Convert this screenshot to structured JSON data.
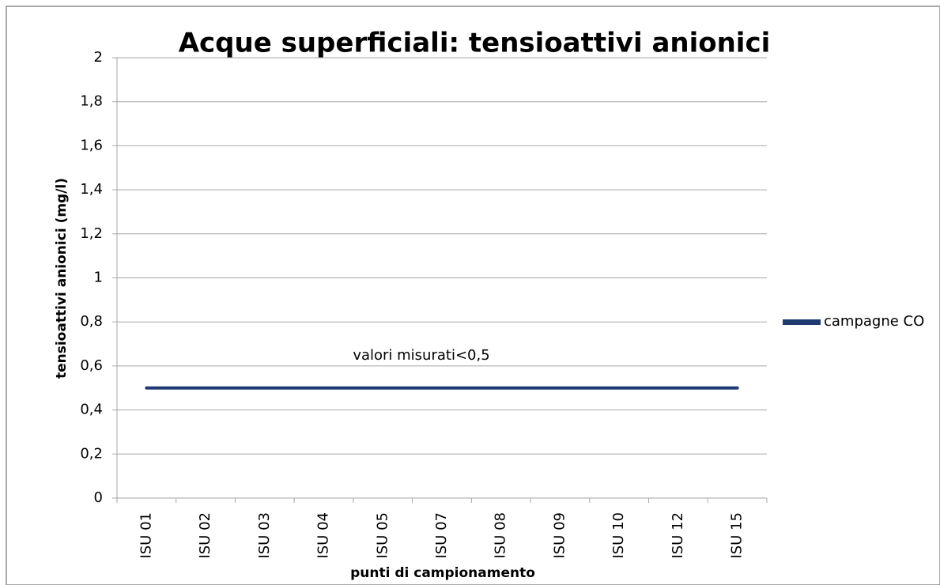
{
  "chart_data": {
    "type": "line",
    "title": "Acque superficiali: tensioattivi anionici",
    "x_label": "punti di campionamento",
    "y_label": "tensioattivi anionici (mg/l)",
    "annotation": "valori misurati<0,5",
    "categories": [
      "ISU 01",
      "ISU 02",
      "ISU 03",
      "ISU 04",
      "ISU 05",
      "ISU 07",
      "ISU 08",
      "ISU 09",
      "ISU 10",
      "ISU 12",
      "ISU 15"
    ],
    "series": [
      {
        "name": "campagne CO",
        "color": "#1f3a70",
        "values": [
          0.5,
          0.5,
          0.5,
          0.5,
          0.5,
          0.5,
          0.5,
          0.5,
          0.5,
          0.5,
          0.5
        ]
      }
    ],
    "ylim": [
      0,
      2
    ],
    "yticks": [
      0,
      {
        "value": 0.2,
        "label": "0,2"
      },
      {
        "value": 0.4,
        "label": "0,4"
      },
      {
        "value": 0.6,
        "label": "0,6"
      },
      {
        "value": 0.8,
        "label": "0,8"
      },
      1,
      {
        "value": 1.2,
        "label": "1,2"
      },
      {
        "value": 1.4,
        "label": "1,4"
      },
      {
        "value": 1.6,
        "label": "1,6"
      },
      {
        "value": 1.8,
        "label": "1,8"
      },
      2
    ],
    "grid": true,
    "legend": "right"
  }
}
